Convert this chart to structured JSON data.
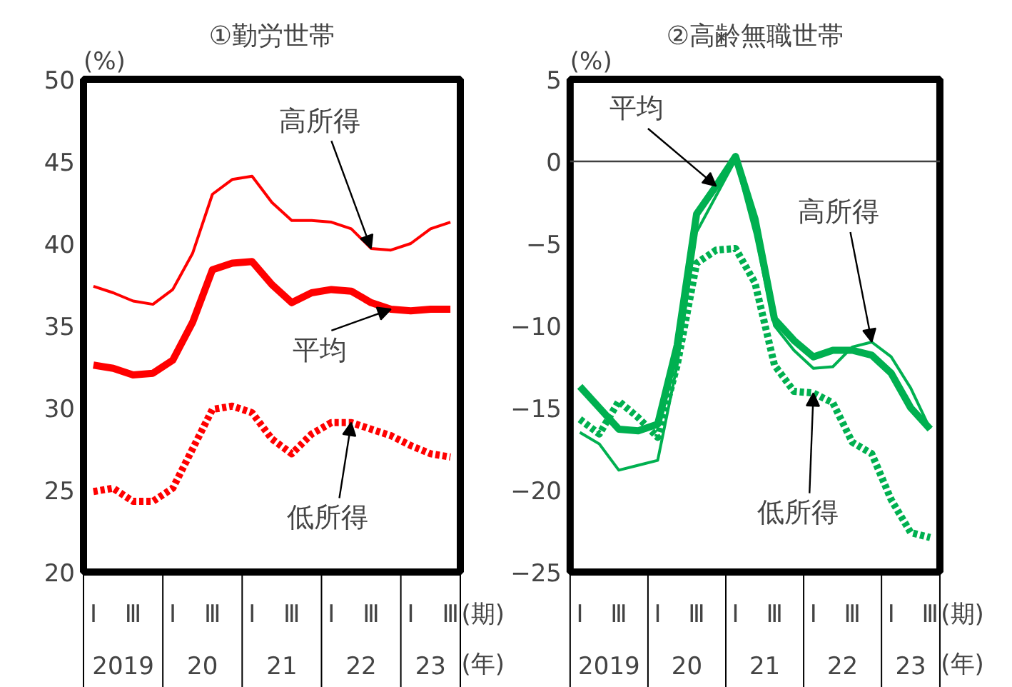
{
  "chart_data": [
    {
      "type": "line",
      "title": "①勤労世帯",
      "ylabel": "(%)",
      "xlabel": "(期)",
      "categories": [
        "Ⅰ",
        null,
        "Ⅲ",
        null,
        "Ⅰ",
        null,
        "Ⅲ",
        null,
        "Ⅰ",
        null,
        "Ⅲ",
        null,
        "Ⅰ",
        null,
        "Ⅲ",
        null,
        "Ⅰ",
        null,
        "Ⅲ"
      ],
      "series": [
        {
          "name": "平均",
          "color": "#ff0000",
          "line_style": "solid",
          "values": [
            32.6,
            32.4,
            32.0,
            32.1,
            32.9,
            35.2,
            38.4,
            38.8,
            38.9,
            37.5,
            36.4,
            37.0,
            37.2,
            37.1,
            36.4,
            36.0,
            35.9,
            36.0,
            36.0
          ]
        },
        {
          "name": "高所得",
          "color": "#ff0000",
          "line_style": "solid",
          "values": [
            37.4,
            37.0,
            36.5,
            36.3,
            37.2,
            39.4,
            43.0,
            43.9,
            44.1,
            42.5,
            41.4,
            41.4,
            41.3,
            40.9,
            39.7,
            39.6,
            40.0,
            40.9,
            41.3
          ]
        },
        {
          "name": "低所得",
          "color": "#ff0000",
          "line_style": "dotted",
          "values": [
            24.9,
            25.1,
            24.3,
            24.3,
            25.1,
            27.5,
            29.9,
            30.1,
            29.7,
            28.1,
            27.2,
            28.4,
            29.1,
            29.1,
            28.7,
            28.3,
            27.7,
            27.2,
            27.0
          ]
        }
      ],
      "ylim": [
        20,
        50
      ],
      "yticks": [
        20,
        25,
        30,
        35,
        40,
        45,
        50
      ],
      "annotations": [
        "2019",
        "20",
        "21",
        "22",
        "23",
        "(年)"
      ]
    },
    {
      "type": "line",
      "title": "②高齢無職世帯",
      "ylabel": "(%)",
      "xlabel": "(期)",
      "categories": [
        "Ⅰ",
        null,
        "Ⅲ",
        null,
        "Ⅰ",
        null,
        "Ⅲ",
        null,
        "Ⅰ",
        null,
        "Ⅲ",
        null,
        "Ⅰ",
        null,
        "Ⅲ",
        null,
        "Ⅰ",
        null,
        "Ⅲ"
      ],
      "series": [
        {
          "name": "平均",
          "color": "#00b050",
          "line_style": "solid",
          "values": [
            -13.7,
            -15.0,
            -16.3,
            -16.4,
            -16.0,
            -11.2,
            -3.2,
            -1.5,
            0.3,
            -3.5,
            -9.6,
            -10.9,
            -11.9,
            -11.5,
            -11.5,
            -11.8,
            -12.9,
            -15.0,
            -16.3
          ]
        },
        {
          "name": "高所得",
          "color": "#00b050",
          "line_style": "solid",
          "values": [
            -16.5,
            -17.2,
            -18.8,
            -18.5,
            -18.2,
            -12.4,
            -4.3,
            -2.1,
            0.1,
            -4.4,
            -10.0,
            -11.5,
            -12.6,
            -12.5,
            -11.3,
            -11.0,
            -11.9,
            -13.8,
            -16.3
          ]
        },
        {
          "name": "低所得",
          "color": "#00b050",
          "line_style": "dotted",
          "values": [
            -15.7,
            -16.6,
            -14.6,
            -15.6,
            -16.8,
            -12.4,
            -6.2,
            -5.4,
            -5.3,
            -7.4,
            -12.4,
            -14.0,
            -14.1,
            -14.7,
            -17.1,
            -17.8,
            -20.6,
            -22.6,
            -22.9
          ]
        }
      ],
      "ylim": [
        -25,
        5
      ],
      "yticks": [
        -25,
        -20,
        -15,
        -10,
        -5,
        0,
        5
      ],
      "ref_lines": [
        {
          "axis": "y",
          "value": 0,
          "color": "#404040"
        }
      ],
      "annotations": [
        "2019",
        "20",
        "21",
        "22",
        "23",
        "(年)"
      ]
    }
  ]
}
